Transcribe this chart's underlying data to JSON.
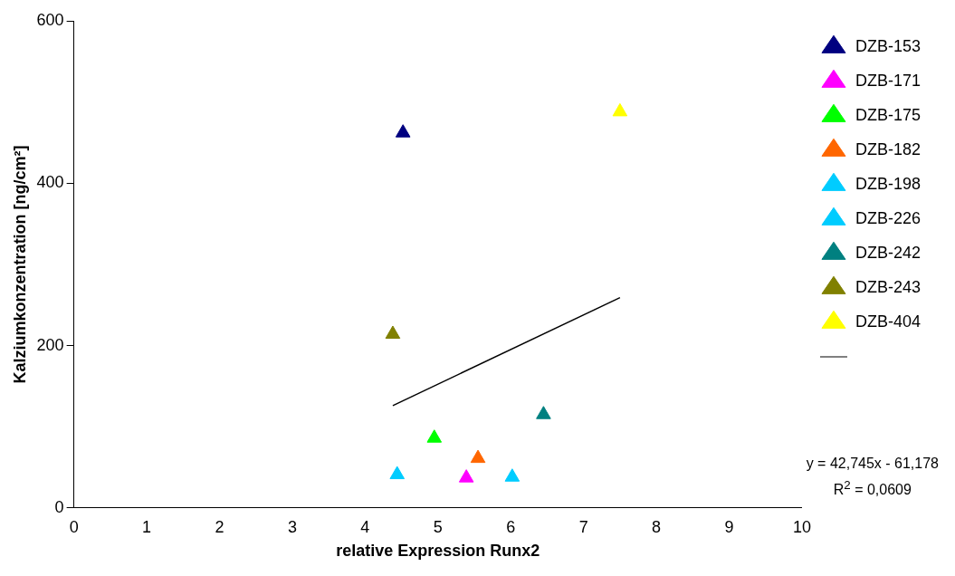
{
  "chart_data": {
    "type": "scatter",
    "xlabel": "relative Expression Runx2",
    "ylabel": "Kalziumkonzentration [ng/cm²]",
    "xlim": [
      0,
      10
    ],
    "xticks": [
      0,
      1,
      2,
      3,
      4,
      5,
      6,
      7,
      8,
      9,
      10
    ],
    "ylim": [
      0,
      600
    ],
    "yticks": [
      0,
      200,
      400,
      600
    ],
    "grid": false,
    "legend": "right",
    "marker": "triangle",
    "series": [
      {
        "name": "DZB-153",
        "color": "#000080",
        "x": [
          4.52
        ],
        "values": [
          462
        ]
      },
      {
        "name": "DZB-171",
        "color": "#ff00ff",
        "x": [
          5.39
        ],
        "values": [
          37
        ]
      },
      {
        "name": "DZB-175",
        "color": "#00ff00",
        "x": [
          4.95
        ],
        "values": [
          86
        ]
      },
      {
        "name": "DZB-182",
        "color": "#ff6600",
        "x": [
          5.55
        ],
        "values": [
          61
        ]
      },
      {
        "name": "DZB-198",
        "color": "#00ccff",
        "x": [
          6.02
        ],
        "values": [
          38
        ]
      },
      {
        "name": "DZB-226",
        "color": "#00ccff",
        "x": [
          4.44
        ],
        "values": [
          41
        ]
      },
      {
        "name": "DZB-242",
        "color": "#008080",
        "x": [
          6.45
        ],
        "values": [
          115
        ]
      },
      {
        "name": "DZB-243",
        "color": "#808000",
        "x": [
          4.38
        ],
        "values": [
          214
        ]
      },
      {
        "name": "DZB-404",
        "color": "#ffff00",
        "x": [
          7.5
        ],
        "values": [
          488
        ]
      },
      {
        "type": "line",
        "color": "#000000",
        "x": [
          4.38,
          7.5
        ],
        "values": [
          126,
          259
        ],
        "marker": "none",
        "line_style": "solid"
      }
    ],
    "annotations": [
      "y = 42,745x - 61,178",
      "R$^{2}$ = 0,0609"
    ]
  }
}
